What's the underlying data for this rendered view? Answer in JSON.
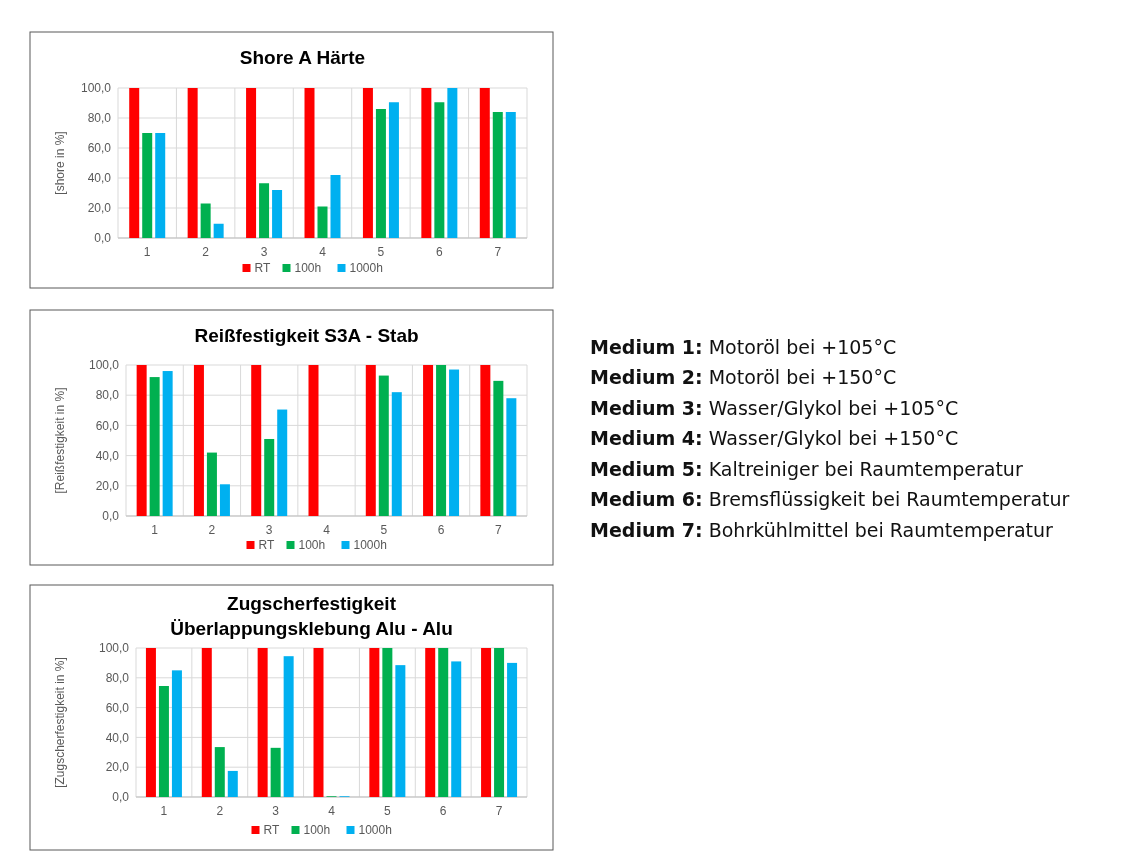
{
  "chart_data": [
    {
      "type": "bar",
      "title": "Shore A Härte",
      "ylabel": "[shore in %]",
      "categories": [
        "1",
        "2",
        "3",
        "4",
        "5",
        "6",
        "7"
      ],
      "series": [
        {
          "name": "RT",
          "color": "#ff0000",
          "values": [
            100,
            100,
            100,
            100,
            100,
            100,
            100
          ]
        },
        {
          "name": "100h",
          "color": "#00b050",
          "values": [
            70,
            23,
            36.5,
            21,
            86,
            90.5,
            84
          ]
        },
        {
          "name": "1000h",
          "color": "#00b0f0",
          "values": [
            70,
            9.5,
            32,
            42,
            90.5,
            100,
            84
          ]
        }
      ],
      "ylim": [
        0,
        100
      ],
      "yticks": [
        {
          "value": 0,
          "label": "0,0"
        },
        {
          "value": 20,
          "label": "20,0"
        },
        {
          "value": 40,
          "label": "40,0"
        },
        {
          "value": 60,
          "label": "60,0"
        },
        {
          "value": 80,
          "label": "80,0"
        },
        {
          "value": 100,
          "label": "100,0"
        }
      ],
      "grid": true,
      "legend": "bottom"
    },
    {
      "type": "bar",
      "title": "Reißfestigkeit S3A - Stab",
      "ylabel": "[Reißfestigkeit in %]",
      "categories": [
        "1",
        "2",
        "3",
        "4",
        "5",
        "6",
        "7"
      ],
      "series": [
        {
          "name": "RT",
          "color": "#ff0000",
          "values": [
            100,
            100,
            100,
            100,
            100,
            100,
            100
          ]
        },
        {
          "name": "100h",
          "color": "#00b050",
          "values": [
            92,
            42,
            51,
            null,
            93,
            100,
            89.5
          ]
        },
        {
          "name": "1000h",
          "color": "#00b0f0",
          "values": [
            96,
            21,
            70.5,
            null,
            82,
            97,
            78
          ]
        }
      ],
      "ylim": [
        0,
        100
      ],
      "yticks": [
        {
          "value": 0,
          "label": "0,0"
        },
        {
          "value": 20,
          "label": "20,0"
        },
        {
          "value": 40,
          "label": "40,0"
        },
        {
          "value": 60,
          "label": "60,0"
        },
        {
          "value": 80,
          "label": "80,0"
        },
        {
          "value": 100,
          "label": "100,0"
        }
      ],
      "grid": true,
      "legend": "bottom"
    },
    {
      "type": "bar",
      "title": "Zugscherfestigkeit\nÜberlappungsklebung Alu - Alu",
      "ylabel": "[Zugscherfestigkeit in %]",
      "categories": [
        "1",
        "2",
        "3",
        "4",
        "5",
        "6",
        "7"
      ],
      "series": [
        {
          "name": "RT",
          "color": "#ff0000",
          "values": [
            100,
            100,
            100,
            100,
            100,
            100,
            100
          ]
        },
        {
          "name": "100h",
          "color": "#00b050",
          "values": [
            74.5,
            33.5,
            33,
            0.5,
            100,
            100,
            100
          ]
        },
        {
          "name": "1000h",
          "color": "#00b0f0",
          "values": [
            85,
            17.5,
            94.5,
            0.5,
            88.5,
            91,
            90
          ]
        }
      ],
      "ylim": [
        0,
        100
      ],
      "yticks": [
        {
          "value": 0,
          "label": "0,0"
        },
        {
          "value": 20,
          "label": "20,0"
        },
        {
          "value": 40,
          "label": "40,0"
        },
        {
          "value": 60,
          "label": "60,0"
        },
        {
          "value": 80,
          "label": "80,0"
        },
        {
          "value": 100,
          "label": "100,0"
        }
      ],
      "grid": true,
      "legend": "bottom"
    },
    {
      "type": "other",
      "annotations": [
        "Medium 1: Motoröl bei +105°C",
        "Medium 2: Motoröl bei +150°C",
        "Medium 3: Wasser/Glykol bei +105°C",
        "Medium 4: Wasser/Glykol bei +150°C",
        "Medium 5: Kaltreiniger bei Raumtemperatur",
        "Medium 6: Bremsflüssigkeit bei Raumtemperatur",
        "Medium 7: Bohrkühlmittel bei Raumtemperatur"
      ]
    }
  ]
}
